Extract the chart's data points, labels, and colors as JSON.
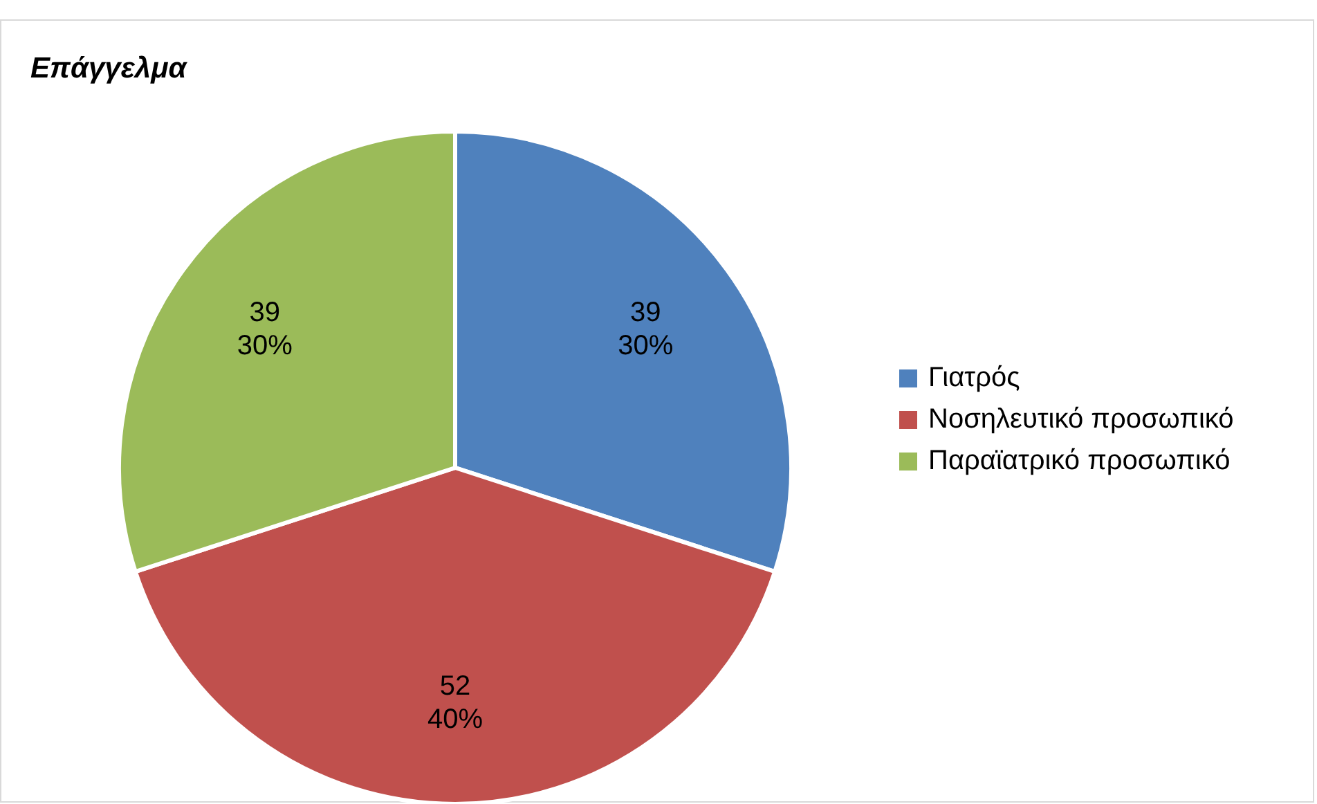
{
  "chart_data": {
    "type": "pie",
    "title": "Επάγγελμα",
    "categories": [
      "Γιατρός",
      "Νοσηλευτικό προσωπικό",
      "Παραϊατρικό προσωπικό"
    ],
    "values": [
      39,
      52,
      39
    ],
    "colors": [
      "#4f81bd",
      "#c0504d",
      "#9bbb59"
    ],
    "value_labels": [
      "39\n30%",
      "52\n40%",
      "39\n30%"
    ],
    "legend": "right"
  }
}
